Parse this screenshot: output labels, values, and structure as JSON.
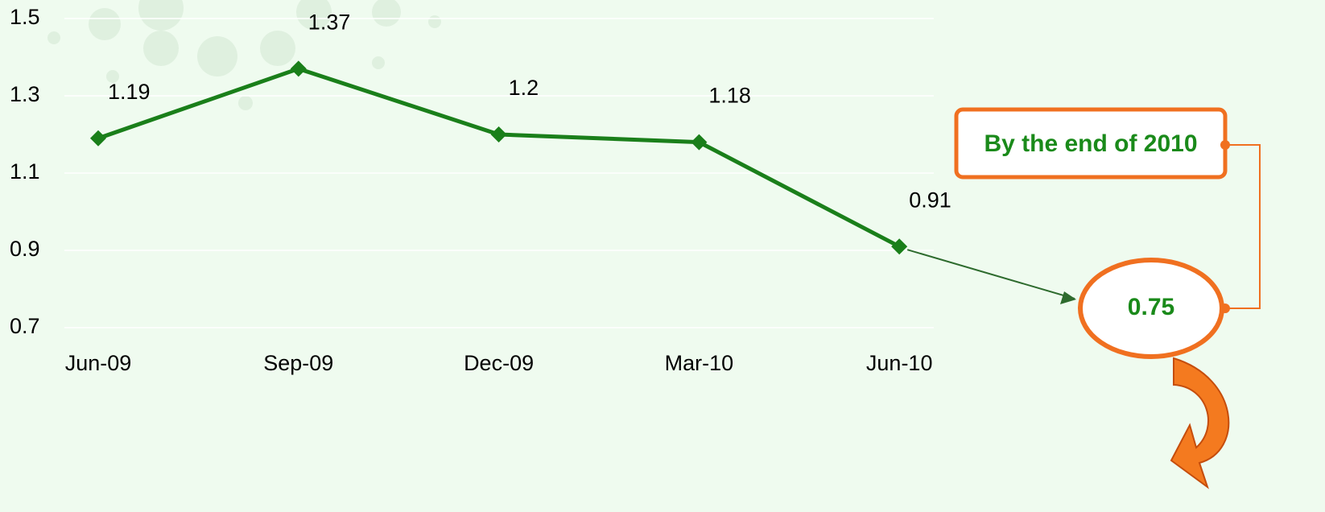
{
  "chart_data": {
    "type": "line",
    "categories": [
      "Jun-09",
      "Sep-09",
      "Dec-09",
      "Mar-10",
      "Jun-10"
    ],
    "values": [
      1.19,
      1.37,
      1.2,
      1.18,
      0.91
    ],
    "color": "#1a7f1a",
    "ylim": [
      0.7,
      1.5
    ],
    "yticks": [
      0.7,
      0.9,
      1.1,
      1.3,
      1.5
    ],
    "grid": true,
    "projection": {
      "label": "By the end of 2010",
      "value": 0.75
    }
  }
}
